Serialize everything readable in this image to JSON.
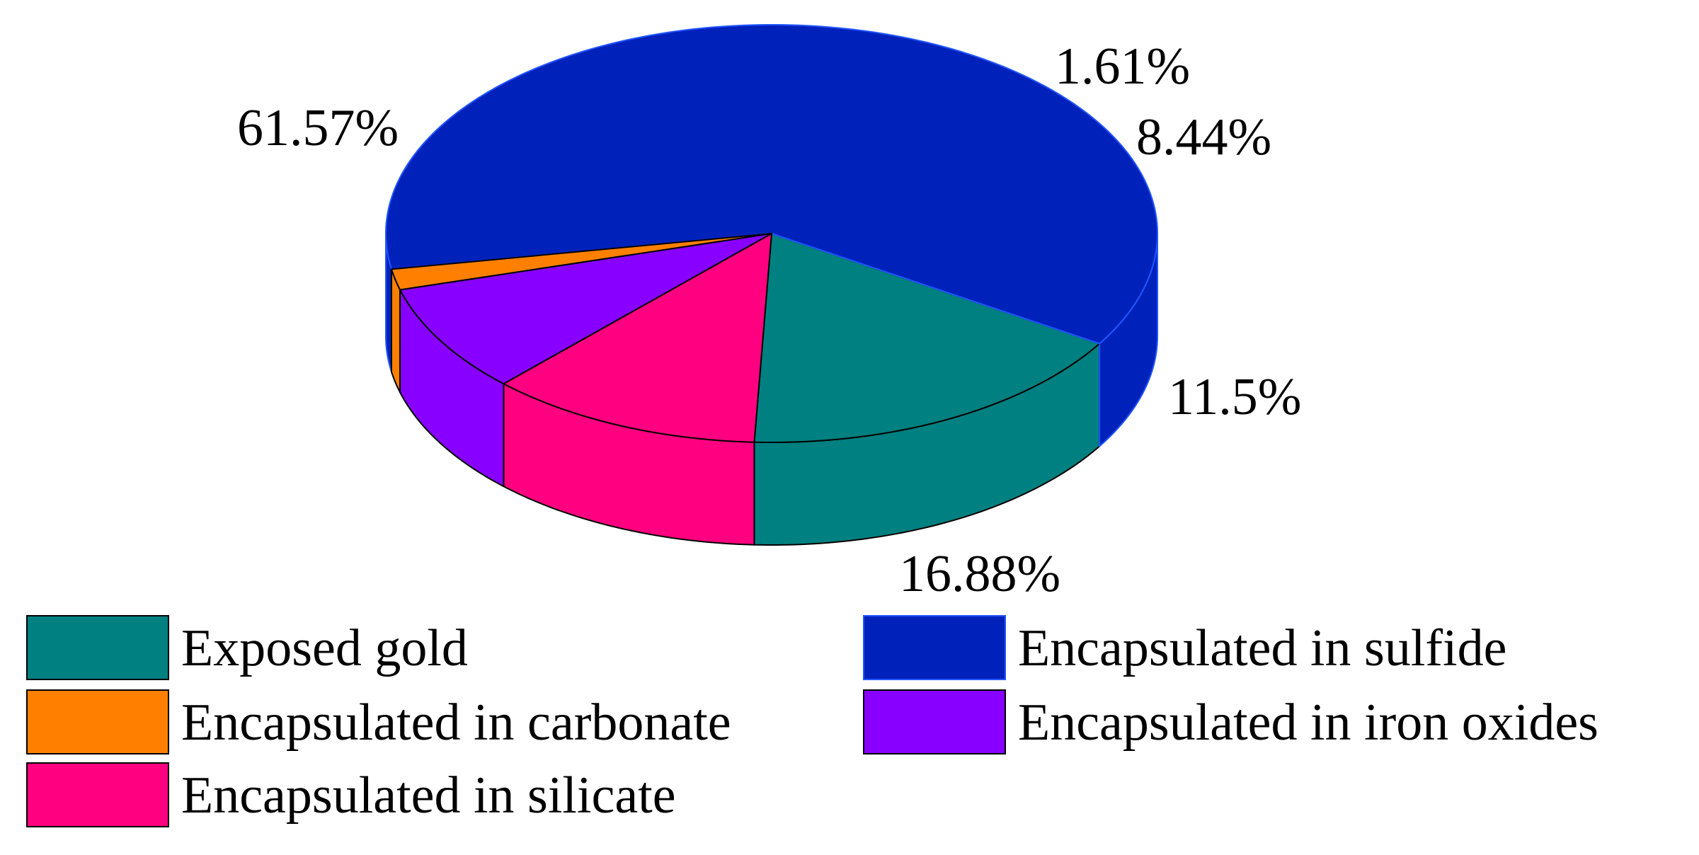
{
  "chart_data": {
    "type": "pie",
    "style": "3d",
    "slices": [
      {
        "name": "Exposed gold",
        "value": 16.88,
        "label": "16.88%",
        "color": "#008080"
      },
      {
        "name": "Encapsulated in sulfide",
        "value": 61.57,
        "label": "61.57%",
        "color": "#0022BB"
      },
      {
        "name": "Encapsulated in carbonate",
        "value": 1.61,
        "label": "1.61%",
        "color": "#FF8000"
      },
      {
        "name": "Encapsulated in iron oxides",
        "value": 8.44,
        "label": "8.44%",
        "color": "#8800FF"
      },
      {
        "name": "Encapsulated in silicate",
        "value": 11.5,
        "label": "11.5%",
        "color": "#FF0080"
      }
    ],
    "legend": {
      "placement": "bottom",
      "entries": [
        {
          "label": "Exposed gold",
          "color": "#008080"
        },
        {
          "label": "Encapsulated in sulfide",
          "color": "#0022BB"
        },
        {
          "label": "Encapsulated in carbonate",
          "color": "#FF8000"
        },
        {
          "label": "Encapsulated in iron oxides",
          "color": "#8800FF"
        },
        {
          "label": "Encapsulated in silicate",
          "color": "#FF0080"
        }
      ]
    }
  }
}
